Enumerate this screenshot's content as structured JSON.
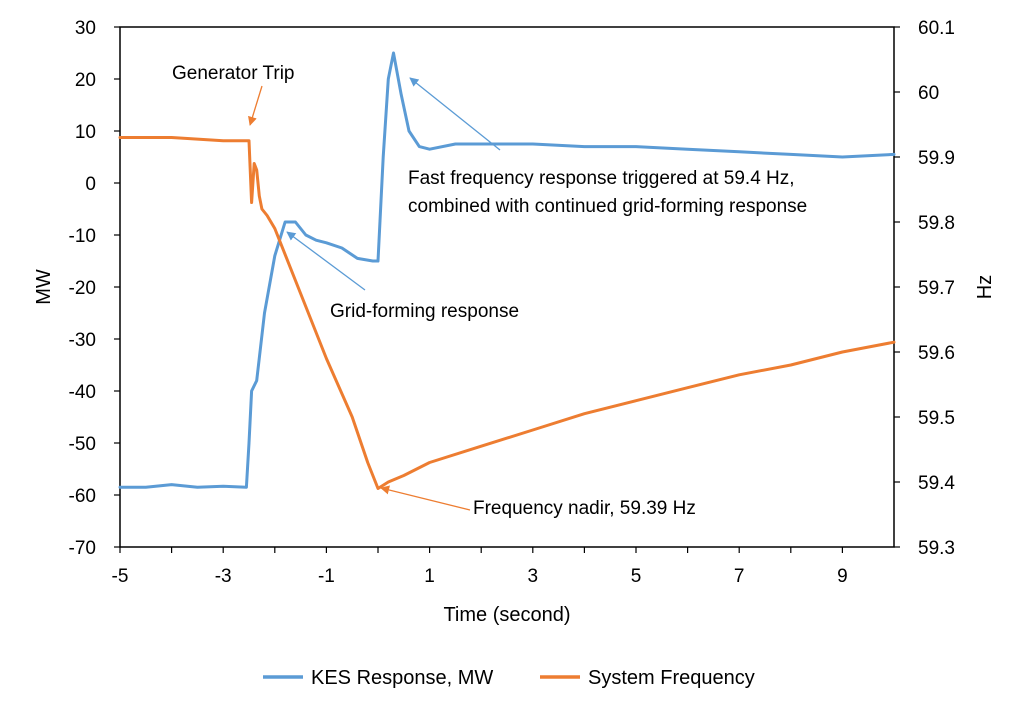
{
  "chart_data": {
    "type": "line",
    "title": "",
    "xlabel": "Time (second)",
    "ylabel_left": "MW",
    "ylabel_right": "Hz",
    "xlim": [
      -5,
      10
    ],
    "ylim_left": [
      -70,
      30
    ],
    "ylim_right": [
      59.3,
      60.1
    ],
    "x_ticks": [
      "-5",
      "-3",
      "-1",
      "1",
      "3",
      "5",
      "7",
      "9"
    ],
    "y_left_ticks": [
      "30",
      "20",
      "10",
      "0",
      "-10",
      "-20",
      "-30",
      "-40",
      "-50",
      "-60",
      "-70"
    ],
    "y_right_ticks": [
      "60.1",
      "60",
      "59.9",
      "59.8",
      "59.7",
      "59.6",
      "59.5",
      "59.4",
      "59.3"
    ],
    "grid": false,
    "legend_position": "bottom",
    "series": [
      {
        "name": "KES Response, MW",
        "axis": "left",
        "color": "#5B9BD5",
        "x": [
          -5,
          -4.5,
          -4,
          -3.5,
          -3,
          -2.55,
          -2.5,
          -2.45,
          -2.35,
          -2.2,
          -2.0,
          -1.8,
          -1.6,
          -1.4,
          -1.2,
          -1.0,
          -0.7,
          -0.4,
          -0.1,
          0.0,
          0.1,
          0.2,
          0.3,
          0.45,
          0.6,
          0.8,
          1.0,
          1.5,
          2,
          3,
          4,
          5,
          6,
          7,
          8,
          9,
          10
        ],
        "y": [
          -58.5,
          -58.5,
          -58,
          -58.5,
          -58.3,
          -58.5,
          -50,
          -40,
          -38,
          -25,
          -14,
          -7.5,
          -7.5,
          -10,
          -11,
          -11.5,
          -12.5,
          -14.5,
          -15,
          -15,
          5,
          20,
          25,
          17,
          10,
          7,
          6.5,
          7.5,
          7.5,
          7.5,
          7,
          7,
          6.5,
          6,
          5.5,
          5,
          5.5
        ]
      },
      {
        "name": "System Frequency",
        "axis": "right",
        "color": "#ED7D31",
        "x": [
          -5,
          -4,
          -3,
          -2.5,
          -2.45,
          -2.4,
          -2.35,
          -2.3,
          -2.25,
          -2.15,
          -2.0,
          -1.5,
          -1.0,
          -0.5,
          -0.2,
          0.0,
          0.2,
          0.5,
          1.0,
          2,
          3,
          4,
          5,
          6,
          7,
          8,
          9,
          10
        ],
        "y": [
          59.93,
          59.93,
          59.925,
          59.925,
          59.83,
          59.89,
          59.88,
          59.84,
          59.82,
          59.81,
          59.79,
          59.69,
          59.59,
          59.5,
          59.43,
          59.39,
          59.4,
          59.41,
          59.43,
          59.455,
          59.48,
          59.505,
          59.525,
          59.545,
          59.565,
          59.58,
          59.6,
          59.615
        ]
      }
    ],
    "annotations": [
      {
        "text": "Generator Trip"
      },
      {
        "text": "Grid-forming response"
      },
      {
        "text": "Fast frequency response triggered at 59.4 Hz,"
      },
      {
        "text": "combined with continued grid-forming response"
      },
      {
        "text": "Frequency nadir, 59.39 Hz"
      }
    ]
  }
}
